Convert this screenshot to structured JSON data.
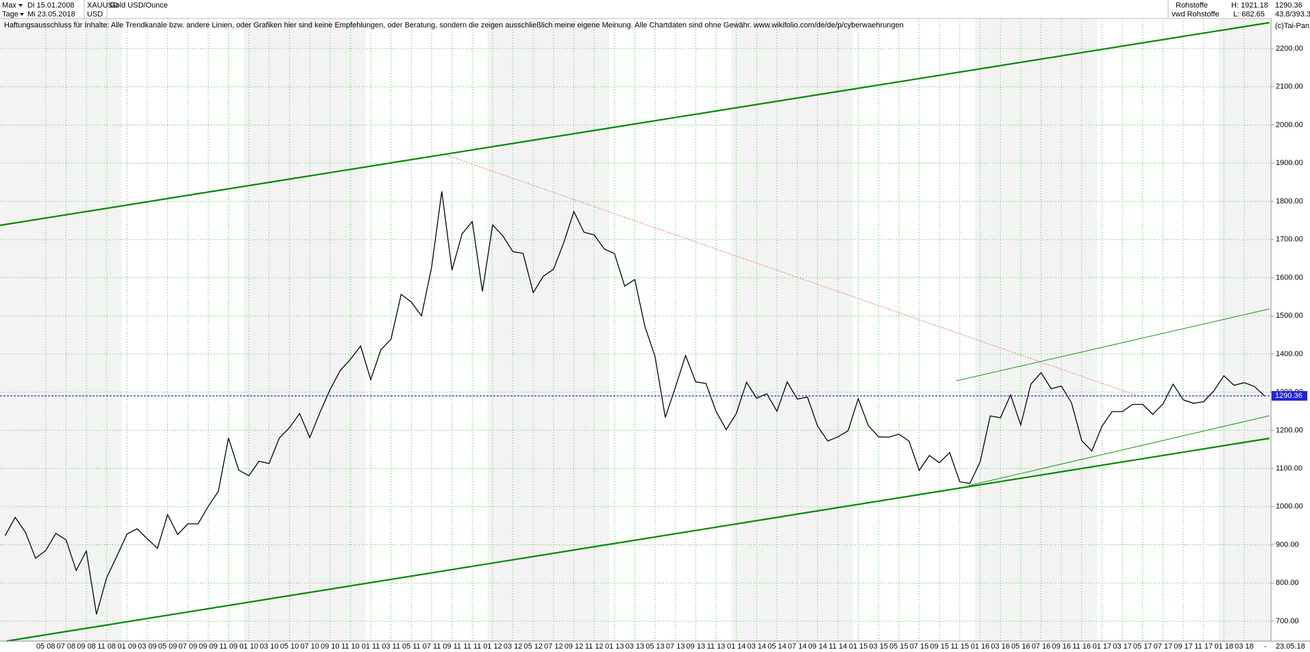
{
  "header": {
    "range": "Max",
    "start_date": "Di 15.01.2008",
    "symbol": "XAUUSD",
    "instrument": "Gold USD/Ounce",
    "interval": "Tage",
    "end_date": "Mi 23.05.2018",
    "currency": "USD",
    "market": "Rohstoffe",
    "high": "H: 1921.18",
    "source": "vwd Rohstoffe",
    "low": "L: 682.65",
    "price": "1290.36",
    "ratio": "43.8/393.3",
    "copyright": "(c)Tai-Pan",
    "disclaimer": "Haftungsausschluss für Inhalte: Alle Trendkanäle bzw. andere Linien, oder Grafiken hier sind keine Empfehlungen, oder Beratung, sondern die zeigen ausschließlich meine eigene Meinung. Alle Chartdaten sind ohne Gewähr.  www.wikifolio.com/de/de/p/cyberwaehrungen",
    "end_label": "23.05.18",
    "end_dash": "-"
  },
  "chart_data": {
    "type": "line",
    "categories": [
      null,
      null,
      null,
      null,
      "05 08",
      null,
      "07 08",
      null,
      "09 08",
      null,
      "11 08",
      null,
      "01 09",
      null,
      "03 09",
      null,
      "05 09",
      null,
      "07 09",
      null,
      "09 09",
      null,
      "11 09",
      null,
      "01 10",
      null,
      "03 10",
      null,
      "05 10",
      null,
      "07 10",
      null,
      "09 10",
      null,
      "11 10",
      null,
      "01 11",
      null,
      "03 11",
      null,
      "05 11",
      null,
      "07 11",
      null,
      "09 11",
      null,
      "11 11",
      null,
      "01 12",
      null,
      "03 12",
      null,
      "05 12",
      null,
      "07 12",
      null,
      "09 12",
      null,
      "11 12",
      null,
      "01 13",
      null,
      "03 13",
      null,
      "05 13",
      null,
      "07 13",
      null,
      "09 13",
      null,
      "11 13",
      null,
      "01 14",
      null,
      "03 14",
      null,
      "05 14",
      null,
      "07 14",
      null,
      "09 14",
      null,
      "11 14",
      null,
      "01 15",
      null,
      "03 15",
      null,
      "05 15",
      null,
      "07 15",
      null,
      "09 15",
      null,
      "11 15",
      null,
      "01 16",
      null,
      "03 16",
      null,
      "05 16",
      null,
      "07 16",
      null,
      "09 16",
      null,
      "11 16",
      null,
      "01 17",
      null,
      "03 17",
      null,
      "05 17",
      null,
      "07 17",
      null,
      "09 17",
      null,
      "11 17",
      null,
      "01 18",
      null,
      "03 18",
      null,
      null
    ],
    "series": [
      {
        "name": "XAUUSD",
        "color": "#000000",
        "values": [
          924,
          972,
          933,
          865,
          885,
          930,
          913,
          833,
          884,
          718,
          814,
          870,
          928,
          942,
          916,
          891,
          979,
          927,
          955,
          955,
          1001,
          1040,
          1180,
          1096,
          1081,
          1119,
          1113,
          1180,
          1207,
          1244,
          1181,
          1247,
          1307,
          1357,
          1386,
          1421,
          1333,
          1411,
          1439,
          1556,
          1536,
          1500,
          1628,
          1826,
          1620,
          1715,
          1747,
          1564,
          1738,
          1710,
          1668,
          1664,
          1561,
          1604,
          1622,
          1691,
          1773,
          1719,
          1712,
          1675,
          1663,
          1578,
          1595,
          1472,
          1393,
          1234,
          1313,
          1396,
          1327,
          1323,
          1250,
          1202,
          1244,
          1326,
          1284,
          1296,
          1250,
          1327,
          1282,
          1287,
          1211,
          1172,
          1183,
          1199,
          1283,
          1212,
          1183,
          1182,
          1190,
          1172,
          1095,
          1134,
          1115,
          1142,
          1065,
          1061,
          1117,
          1238,
          1233,
          1293,
          1214,
          1321,
          1351,
          1309,
          1316,
          1272,
          1173,
          1146,
          1211,
          1249,
          1249,
          1268,
          1268,
          1242,
          1269,
          1321,
          1280,
          1271,
          1275,
          1303,
          1343,
          1318,
          1325,
          1315,
          1290.36
        ]
      }
    ],
    "ylim": [
      648,
      2279
    ],
    "yticks": [
      {
        "value": 700,
        "label": "700.00"
      },
      {
        "value": 800,
        "label": "800.00"
      },
      {
        "value": 900,
        "label": "900.00"
      },
      {
        "value": 1000,
        "label": "1000.00"
      },
      {
        "value": 1100,
        "label": "1100.00"
      },
      {
        "value": 1200,
        "label": "1200.00"
      },
      {
        "value": 1300,
        "label": "1300.00"
      },
      {
        "value": 1400,
        "label": "1400.00"
      },
      {
        "value": 1500,
        "label": "1500.00"
      },
      {
        "value": 1600,
        "label": "1600.00"
      },
      {
        "value": 1700,
        "label": "1700.00"
      },
      {
        "value": 1800,
        "label": "1800.00"
      },
      {
        "value": 1900,
        "label": "1900.00"
      },
      {
        "value": 2000,
        "label": "2000.00"
      },
      {
        "value": 2100,
        "label": "2100.00"
      },
      {
        "value": 2200,
        "label": "2200.00"
      }
    ],
    "grid": true,
    "grid_color": "#33cc33",
    "last_line_color": "#2222dd"
  }
}
